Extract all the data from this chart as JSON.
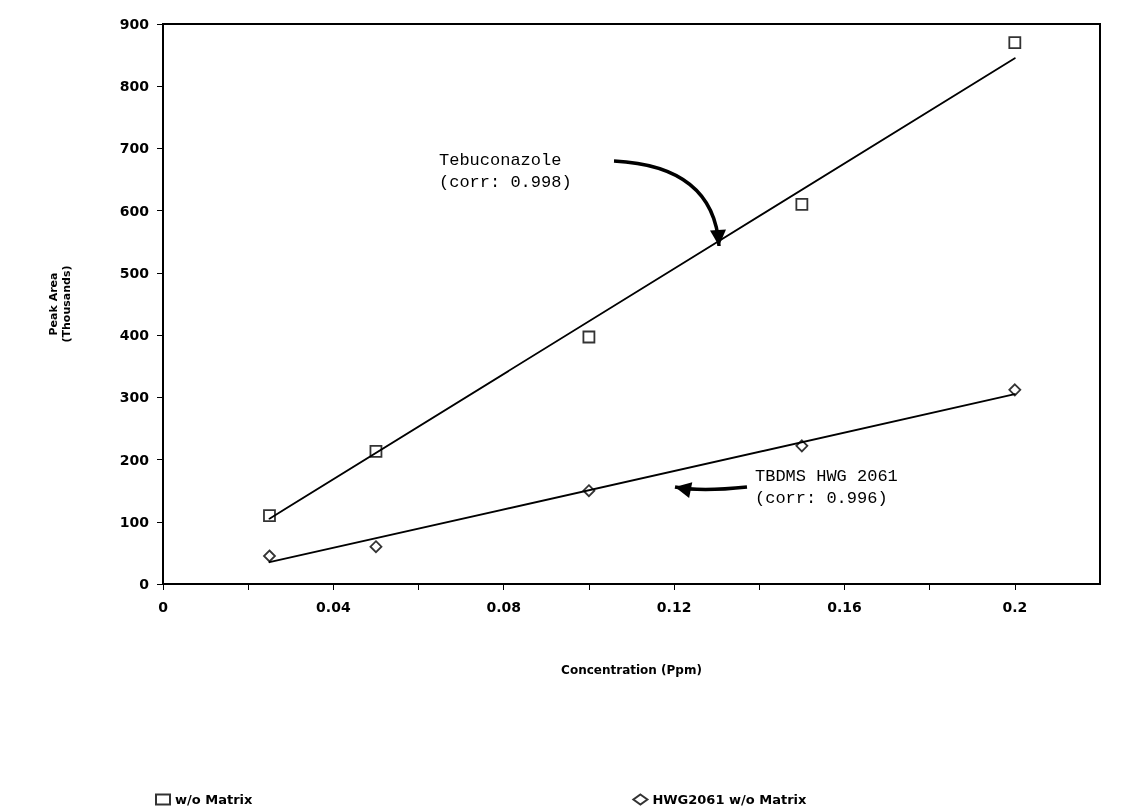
{
  "chart_data": {
    "type": "scatter",
    "xlabel": "Concentration (Ppm)",
    "ylabel": "Peak Area\n(Thousands)",
    "xlim": [
      0,
      0.22
    ],
    "ylim": [
      0,
      900
    ],
    "xticks": [
      0,
      {
        "value": 0.02,
        "label": null
      },
      0.04,
      {
        "value": 0.06,
        "label": null
      },
      0.08,
      {
        "value": 0.1,
        "label": null
      },
      0.12,
      {
        "value": 0.14,
        "label": null
      },
      0.16,
      {
        "value": 0.18,
        "label": null
      },
      0.2
    ],
    "yticks": [
      0,
      100,
      200,
      300,
      400,
      500,
      600,
      700,
      800,
      900
    ],
    "grid": false,
    "legend": "bottom",
    "series": [
      {
        "name": "w/o Matrix",
        "marker": "square",
        "color": "#000000",
        "x": [
          0.025,
          0.05,
          0.1,
          0.15,
          0.2
        ],
        "values": [
          110,
          213,
          397,
          610,
          870
        ]
      },
      {
        "name": "HWG2061 w/o Matrix",
        "marker": "diamond",
        "color": "#000000",
        "x": [
          0.025,
          0.05,
          0.1,
          0.15,
          0.2
        ],
        "values": [
          45,
          60,
          150,
          222,
          312
        ]
      },
      {
        "type": "line",
        "marker": "none",
        "color": "#000000",
        "x": [
          0.025,
          0.2
        ],
        "values": [
          105,
          845
        ]
      },
      {
        "type": "line",
        "marker": "none",
        "color": "#000000",
        "x": [
          0.025,
          0.2
        ],
        "values": [
          35,
          305
        ]
      }
    ],
    "annotations": [
      "Tebuconazole\n(corr: 0.998)",
      "TBDMS HWG 2061\n(corr: 0.996)"
    ]
  }
}
